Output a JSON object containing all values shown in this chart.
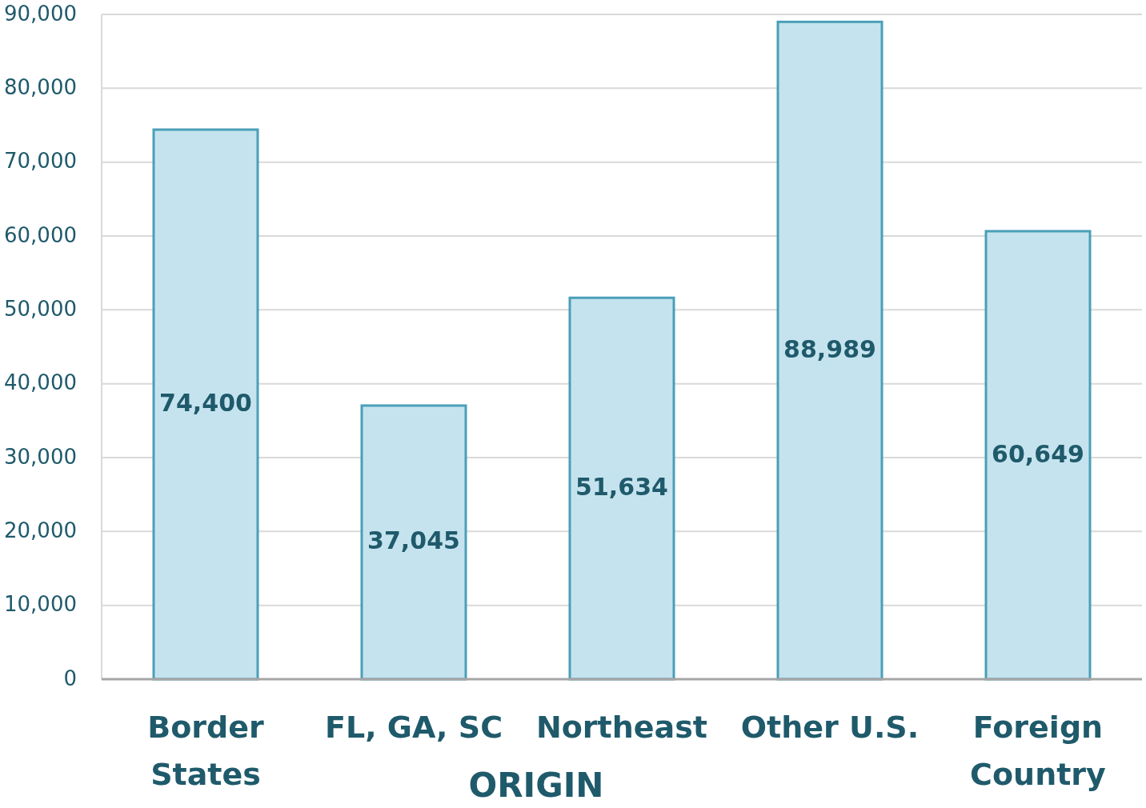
{
  "chart_data": {
    "type": "bar",
    "xlabel": "ORIGIN",
    "categories": [
      "Border States",
      "FL, GA, SC",
      "Northeast",
      "Other U.S.",
      "Foreign Country"
    ],
    "values": [
      74400,
      37045,
      51634,
      88989,
      60649
    ],
    "color": "#c5e3ee",
    "ylim": [
      0,
      90000
    ],
    "yticks": [
      {
        "value": 0,
        "label": "0"
      },
      {
        "value": 10000,
        "label": "10,000"
      },
      {
        "value": 20000,
        "label": "20,000"
      },
      {
        "value": 30000,
        "label": "30,000"
      },
      {
        "value": 40000,
        "label": "40,000"
      },
      {
        "value": 50000,
        "label": "50,000"
      },
      {
        "value": 60000,
        "label": "60,000"
      },
      {
        "value": 70000,
        "label": "70,000"
      },
      {
        "value": 80000,
        "label": "80,000"
      },
      {
        "value": 90000,
        "label": "90,000"
      }
    ],
    "value_labels": [
      "74,400",
      "37,045",
      "51,634",
      "88,989",
      "60,649"
    ],
    "grid": "y"
  }
}
